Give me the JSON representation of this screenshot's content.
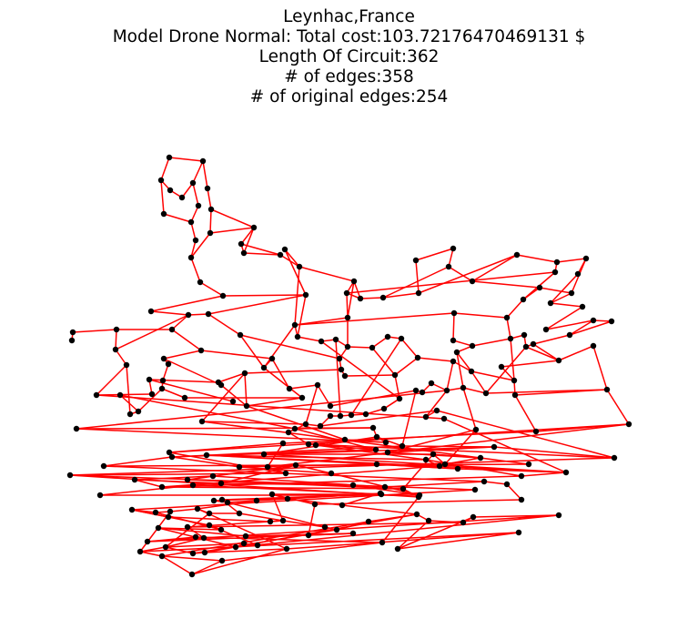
{
  "title": {
    "line1": "Leynhac,France",
    "line2": "Model Drone Normal: Total cost:103.72176470469131 $",
    "line3": "Length Of Circuit:362",
    "line4": "# of edges:358",
    "line5": "# of original edges:254"
  },
  "colors": {
    "edge": "#ff0000",
    "node": "#000000",
    "background": "#ffffff"
  }
}
